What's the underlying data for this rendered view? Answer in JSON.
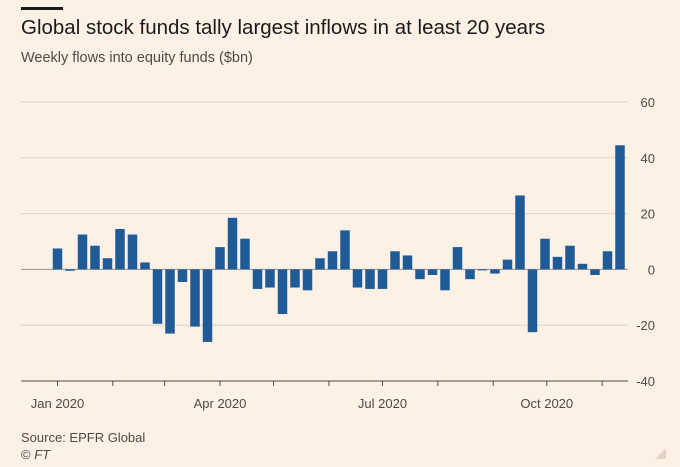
{
  "header": {
    "title": "Global stock funds tally largest inflows in at least 20 years",
    "subtitle": "Weekly flows into equity funds ($bn)"
  },
  "footer": {
    "source": "Source: EPFR Global",
    "brand_symbol": "©",
    "brand_name": "FT"
  },
  "chart_data": {
    "type": "bar",
    "title": "Global stock funds tally largest inflows in at least 20 years",
    "subtitle": "Weekly flows into equity funds ($bn)",
    "xlabel": "",
    "ylabel": "",
    "ylim": [
      -40,
      60
    ],
    "yticks": [
      60,
      40,
      20,
      0,
      -20,
      -40
    ],
    "x_tick_labels": [
      "Jan 2020",
      "Apr 2020",
      "Jul 2020",
      "Oct 2020"
    ],
    "grid": true,
    "bar_color": "#1f5b96",
    "categories": [
      "2020-01-01",
      "2020-01-08",
      "2020-01-15",
      "2020-01-22",
      "2020-01-29",
      "2020-02-05",
      "2020-02-12",
      "2020-02-19",
      "2020-02-26",
      "2020-03-04",
      "2020-03-11",
      "2020-03-18",
      "2020-03-25",
      "2020-04-01",
      "2020-04-08",
      "2020-04-15",
      "2020-04-22",
      "2020-04-29",
      "2020-05-06",
      "2020-05-13",
      "2020-05-20",
      "2020-05-27",
      "2020-06-03",
      "2020-06-10",
      "2020-06-17",
      "2020-06-24",
      "2020-07-01",
      "2020-07-08",
      "2020-07-15",
      "2020-07-22",
      "2020-07-29",
      "2020-08-05",
      "2020-08-12",
      "2020-08-19",
      "2020-08-26",
      "2020-09-02",
      "2020-09-09",
      "2020-09-16",
      "2020-09-23",
      "2020-09-30",
      "2020-10-07",
      "2020-10-14",
      "2020-10-21",
      "2020-10-28",
      "2020-11-04",
      "2020-11-11"
    ],
    "values": [
      7.5,
      -0.5,
      12.5,
      8.5,
      4,
      14.5,
      12.5,
      2.5,
      -19.5,
      -23,
      -4.5,
      -20.5,
      -26,
      8,
      18.5,
      11,
      -7,
      -6.5,
      -16,
      -6.5,
      -7.5,
      4,
      6.5,
      14,
      -6.5,
      -7,
      -7,
      6.5,
      5,
      -3.5,
      -2,
      -7.5,
      8,
      -3.5,
      0,
      -1.5,
      3.5,
      26.5,
      -22.5,
      11,
      4.5,
      8.5,
      2,
      -2,
      6.5,
      44.5
    ]
  }
}
